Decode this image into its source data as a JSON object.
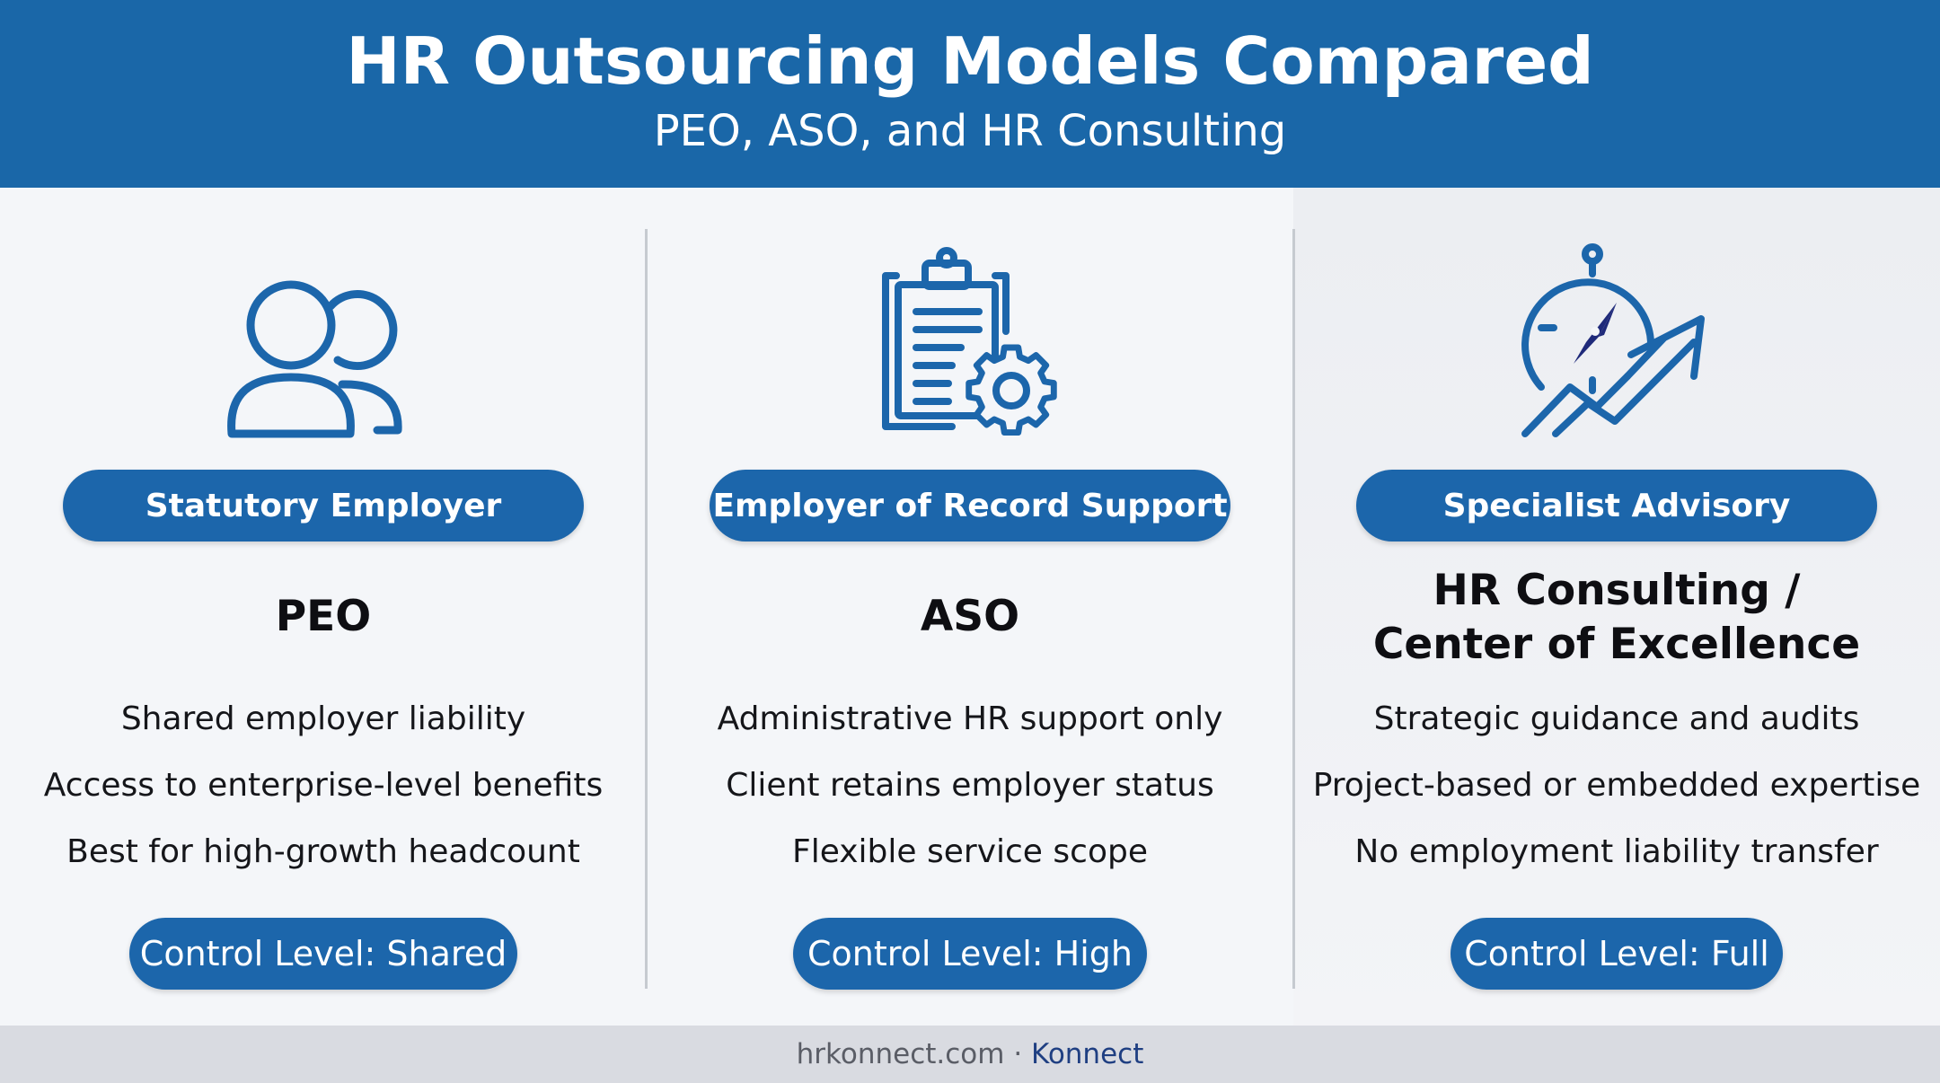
{
  "header": {
    "title": "HR Outsourcing Models Compared",
    "subtitle": "PEO, ASO, and HR Consulting"
  },
  "columns": [
    {
      "icon": "users-icon",
      "pill": "Statutory Employer",
      "model_line1": "PEO",
      "model_line2": "",
      "bullets": [
        "Shared employer liability",
        "Access to enterprise-level benefits",
        "Best for high-growth headcount"
      ],
      "control": "Control Level: Shared"
    },
    {
      "icon": "clipboard-gear-icon",
      "pill": "Employer of Record Support",
      "model_line1": "ASO",
      "model_line2": "",
      "bullets": [
        "Administrative HR support only",
        "Client retains employer status",
        "Flexible service scope"
      ],
      "control": "Control Level: High"
    },
    {
      "icon": "compass-growth-icon",
      "pill": "Specialist Advisory",
      "model_line1": "HR Consulting /",
      "model_line2": "Center of Excellence",
      "bullets": [
        "Strategic guidance and audits",
        "Project-based or embedded expertise",
        "No employment liability transfer"
      ],
      "control": "Control Level: Full"
    }
  ],
  "footer": {
    "site": "hrkonnect.com",
    "separator": " · ",
    "brand": "Konnect"
  },
  "colors": {
    "header_bg": "#1a67a8",
    "accent": "#1c66ab",
    "icon_dark": "#1f2a7a"
  }
}
